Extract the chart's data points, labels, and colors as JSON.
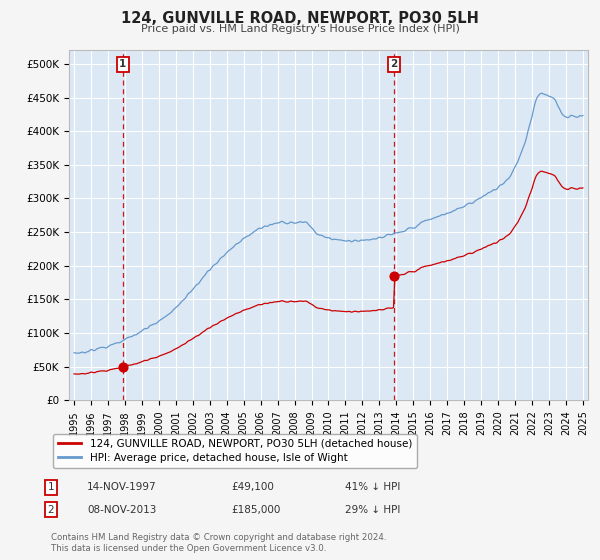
{
  "title": "124, GUNVILLE ROAD, NEWPORT, PO30 5LH",
  "subtitle": "Price paid vs. HM Land Registry's House Price Index (HPI)",
  "ylabel_ticks": [
    "£0",
    "£50K",
    "£100K",
    "£150K",
    "£200K",
    "£250K",
    "£300K",
    "£350K",
    "£400K",
    "£450K",
    "£500K"
  ],
  "ytick_values": [
    0,
    50000,
    100000,
    150000,
    200000,
    250000,
    300000,
    350000,
    400000,
    450000,
    500000
  ],
  "ylim": [
    0,
    520000
  ],
  "xlim_start": 1994.7,
  "xlim_end": 2025.3,
  "sale1_year": 1997.87,
  "sale1_price": 49100,
  "sale1_label": "1",
  "sale1_text": "14-NOV-1997",
  "sale1_price_str": "£49,100",
  "sale1_hpi_str": "41% ↓ HPI",
  "sale2_year": 2013.85,
  "sale2_price": 185000,
  "sale2_label": "2",
  "sale2_text": "08-NOV-2013",
  "sale2_price_str": "£185,000",
  "sale2_hpi_str": "29% ↓ HPI",
  "property_color": "#cc0000",
  "hpi_color": "#6699cc",
  "legend_property": "124, GUNVILLE ROAD, NEWPORT, PO30 5LH (detached house)",
  "legend_hpi": "HPI: Average price, detached house, Isle of Wight",
  "footnote": "Contains HM Land Registry data © Crown copyright and database right 2024.\nThis data is licensed under the Open Government Licence v3.0.",
  "background_color": "#f5f5f5",
  "plot_background": "#dce9f5",
  "grid_color": "#ffffff"
}
